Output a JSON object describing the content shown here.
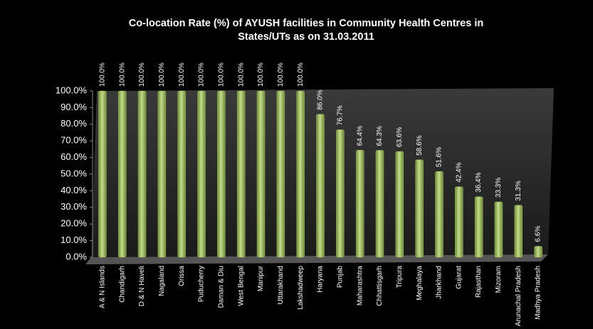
{
  "chart_data": {
    "type": "bar",
    "title": [
      "Co-location Rate (%) of AYUSH facilities in Community Health Centres in",
      "States/UTs as on 31.03.2011"
    ],
    "categories": [
      "A & N Islands",
      "Chandigarh",
      "D & N Haveli",
      "Nagaland",
      "Orissa",
      "Puducherry",
      "Daman & Diu",
      "West Bengal",
      "Manipur",
      "Uttarakhand",
      "Lakshadweep",
      "Haryana",
      "Punjab",
      "Maharashtra",
      "Chhattisgarh",
      "Tripura",
      "Meghalaya",
      "Jharkhand",
      "Gujarat",
      "Rajasthan",
      "Mizoram",
      "Arunachal Pradesh",
      "Madhya Pradesh"
    ],
    "values": [
      100,
      100,
      100,
      100,
      100,
      100,
      100,
      100,
      100,
      100,
      100,
      86.0,
      76.7,
      64.4,
      64.3,
      63.6,
      58.6,
      51.6,
      42.4,
      36.4,
      33.3,
      31.3,
      6.6
    ],
    "value_labels": [
      "100.0%",
      "100.0%",
      "100.0%",
      "100.0%",
      "100.0%",
      "100.0%",
      "100.0%",
      "100.0%",
      "100.0%",
      "100.0%",
      "100.0%",
      "86.0%",
      "76.7%",
      "64.4%",
      "64.3%",
      "63.6%",
      "58.6%",
      "51.6%",
      "42.4%",
      "36.4%",
      "33.3%",
      "31.3%",
      "6.6%"
    ],
    "color": "#9bbb59",
    "ylim": [
      0,
      100
    ],
    "yticks": [
      {
        "value": 0,
        "label": "0.0%"
      },
      {
        "value": 10,
        "label": "10.0%"
      },
      {
        "value": 20,
        "label": "20.0%"
      },
      {
        "value": 30,
        "label": "30.0%"
      },
      {
        "value": 40,
        "label": "40.0%"
      },
      {
        "value": 50,
        "label": "50.0%"
      },
      {
        "value": 60,
        "label": "60.0%"
      },
      {
        "value": 70,
        "label": "70.0%"
      },
      {
        "value": 80,
        "label": "80.0%"
      },
      {
        "value": 90,
        "label": "90.0%"
      },
      {
        "value": 100,
        "label": "100.0%"
      }
    ],
    "grid": false
  }
}
